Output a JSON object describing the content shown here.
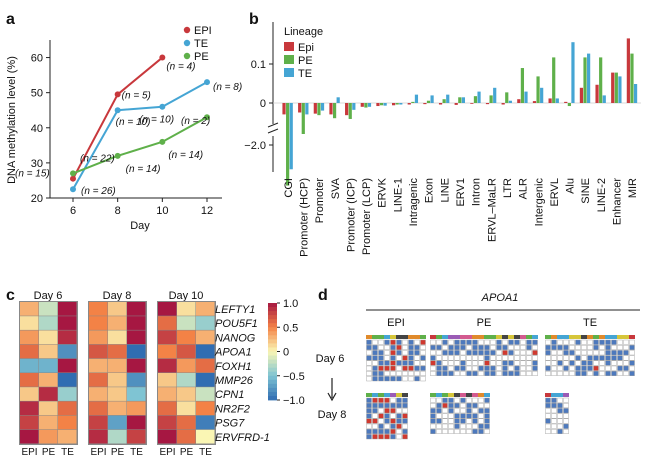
{
  "panels": {
    "a": "a",
    "b": "b",
    "c": "c",
    "d": "d"
  },
  "colors": {
    "EPI": "#c8383c",
    "PE": "#5fb04a",
    "TE": "#45a5d4"
  },
  "chart_data": [
    {
      "type": "line",
      "panel": "a",
      "xlabel": "Day",
      "ylabel": "DNA methylation level (%)",
      "x": [
        6,
        8,
        10,
        12
      ],
      "ylim": [
        20,
        65
      ],
      "yticks": [
        20,
        30,
        40,
        50,
        60
      ],
      "xticks": [
        6,
        8,
        10,
        12
      ],
      "legend": [
        "EPI",
        "TE",
        "PE"
      ],
      "series": [
        {
          "name": "EPI",
          "x": [
            6,
            8,
            10
          ],
          "values": [
            25.5,
            49.5,
            60
          ],
          "labels": [
            "(n = 15)",
            "(n = 5)",
            "(n = 4)"
          ]
        },
        {
          "name": "TE",
          "x": [
            6,
            8,
            10,
            12
          ],
          "values": [
            22.5,
            45,
            46,
            53
          ],
          "labels": [
            "(n = 26)",
            "(n = 10)",
            "(n = 10)",
            "(n = 8)"
          ]
        },
        {
          "name": "PE",
          "x": [
            6,
            8,
            10,
            12
          ],
          "values": [
            27,
            32,
            36,
            43
          ],
          "labels": [
            "(n = 22)",
            "(n = 14)",
            "(n = 14)",
            "(n = 2)"
          ]
        }
      ]
    },
    {
      "type": "bar",
      "panel": "b",
      "legend_title": "Lineage",
      "legend": [
        "Epi",
        "PE",
        "TE"
      ],
      "yticks": [
        "0.1",
        "0",
        "−2.0"
      ],
      "categories": [
        "CGI",
        "Promoter (HCP)",
        "Promoter",
        "SVA",
        "Promoter (ICP)",
        "Promoter (LCP)",
        "ERVK",
        "LINE-1",
        "Intragenic",
        "Exon",
        "LINE",
        "ERV1",
        "Intron",
        "ERVL–MaLR",
        "LTR",
        "ALR",
        "Intergenic",
        "ERVL",
        "Alu",
        "SINE",
        "LINE-2",
        "Enhancer",
        "MIR"
      ],
      "series": [
        {
          "name": "Epi",
          "values": [
            -0.03,
            -0.025,
            -0.028,
            -0.03,
            -0.032,
            -0.01,
            -0.008,
            -0.006,
            -0.004,
            -0.003,
            -0.004,
            -0.005,
            -0.002,
            -0.003,
            -0.004,
            0.01,
            0.005,
            0.012,
            0.003,
            0.04,
            0.048,
            0.08,
            0.17
          ]
        },
        {
          "name": "PE",
          "values": [
            -0.24,
            -0.05,
            -0.032,
            -0.04,
            -0.042,
            -0.012,
            -0.006,
            -0.004,
            0.003,
            0.006,
            0.01,
            0.015,
            0.018,
            0.02,
            0.028,
            0.092,
            0.07,
            0.12,
            -0.008,
            0.12,
            0.12,
            0.08,
            0.13
          ]
        },
        {
          "name": "TE",
          "values": [
            -0.18,
            -0.03,
            -0.02,
            0.015,
            -0.018,
            -0.01,
            -0.007,
            -0.004,
            0.022,
            0.02,
            0.022,
            0.015,
            0.03,
            0.04,
            0.006,
            0.03,
            0.04,
            0.012,
            0.16,
            0.13,
            0.02,
            0.07,
            0.05
          ]
        }
      ]
    },
    {
      "type": "heatmap",
      "panel": "c",
      "days": [
        "Day 6",
        "Day 8",
        "Day 10"
      ],
      "columns": [
        "EPI",
        "PE",
        "TE"
      ],
      "genes": [
        "LEFTY1",
        "POU5F1",
        "NANOG",
        "APOA1",
        "FOXH1",
        "MMP26",
        "CPN1",
        "NR2F2",
        "PSG7",
        "ERVFRD-1"
      ],
      "gene_lineage": [
        "EPI",
        "EPI",
        "EPI",
        "PE",
        "EPI",
        "TE",
        "PE",
        "TE",
        "TE",
        "TE"
      ],
      "colorbar_ticks": [
        "1.0",
        "0.5",
        "0",
        "−0.5",
        "−1.0"
      ],
      "values": [
        [
          [
            0.3,
            -0.2,
            1.0
          ],
          [
            0.1,
            -0.3,
            1.0
          ],
          [
            0.4,
            0.1,
            0.9
          ],
          [
            0.6,
            0.2,
            -0.8
          ],
          [
            -0.6,
            -0.6,
            1.0
          ],
          [
            0.6,
            0.3,
            -1.0
          ],
          [
            0.2,
            0.9,
            -0.4
          ],
          [
            0.9,
            0.2,
            0.6
          ],
          [
            0.8,
            0.3,
            0.5
          ],
          [
            1.0,
            0.4,
            0.3
          ]
        ],
        [
          [
            0.5,
            0.2,
            1.0
          ],
          [
            0.5,
            0.3,
            1.0
          ],
          [
            0.4,
            0.1,
            1.0
          ],
          [
            0.7,
            0.6,
            -1.0
          ],
          [
            0.3,
            0.3,
            1.0
          ],
          [
            0.6,
            0.2,
            -0.8
          ],
          [
            0.3,
            0.2,
            -0.5
          ],
          [
            0.6,
            0.3,
            0.4
          ],
          [
            0.8,
            -0.7,
            1.0
          ],
          [
            0.9,
            -0.3,
            0.8
          ]
        ],
        [
          [
            1.0,
            0.1,
            0.3
          ],
          [
            0.6,
            -0.2,
            -0.4
          ],
          [
            0.8,
            0.5,
            0.3
          ],
          [
            0.5,
            0.7,
            -1.0
          ],
          [
            0.9,
            0.4,
            0.6
          ],
          [
            0.2,
            -0.3,
            -1.0
          ],
          [
            0.3,
            0.2,
            -0.2
          ],
          [
            0.6,
            0.1,
            0.5
          ],
          [
            0.8,
            0.6,
            -0.9
          ],
          [
            1.0,
            0.6,
            0.0
          ]
        ]
      ]
    }
  ],
  "panel_d": {
    "gene": "APOA1",
    "lineages": [
      "EPI",
      "PE",
      "TE"
    ],
    "days": [
      "Day 6",
      "Day 8"
    ]
  }
}
